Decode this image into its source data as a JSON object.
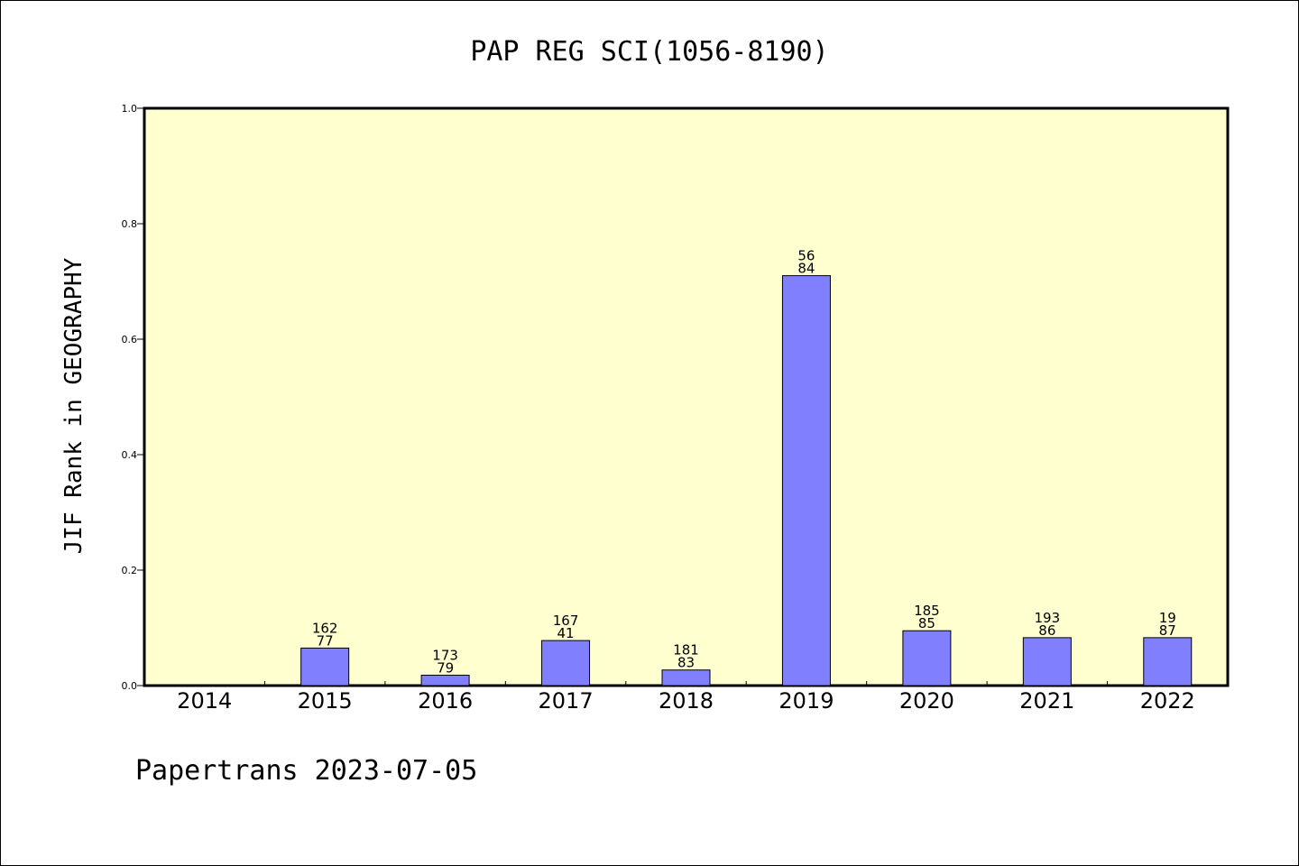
{
  "chart_data": {
    "type": "bar",
    "title": "PAP REG SCI(1056-8190)",
    "xlabel": "",
    "ylabel": "JIF Rank in GEOGRAPHY",
    "categories": [
      "2014",
      "2015",
      "2016",
      "2017",
      "2018",
      "2019",
      "2020",
      "2021",
      "2022"
    ],
    "values": [
      null,
      0.065,
      0.018,
      0.078,
      0.027,
      0.71,
      0.095,
      0.083,
      0.083
    ],
    "bar_labels": [
      null,
      [
        "162",
        "77"
      ],
      [
        "173",
        "79"
      ],
      [
        "167",
        "41"
      ],
      [
        "181",
        "83"
      ],
      [
        "56",
        "84"
      ],
      [
        "185",
        "85"
      ],
      [
        "193",
        "86"
      ],
      [
        "19",
        "87"
      ]
    ],
    "ylim": [
      0,
      1.0
    ],
    "yticks": [
      "0.0",
      "0.2",
      "0.4",
      "0.6",
      "0.8",
      "1.0"
    ],
    "colors": {
      "plot_background": "#ffffd0",
      "bar_fill": "#8080ff",
      "bar_stroke": "#000000"
    },
    "grid": false,
    "legend": "none"
  },
  "footer": "Papertrans 2023-07-05"
}
